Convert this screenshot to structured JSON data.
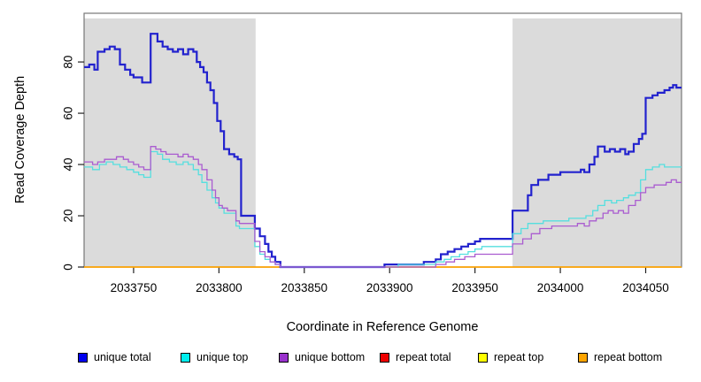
{
  "chart_data": {
    "type": "line",
    "step": true,
    "title": "",
    "xlabel": "Coordinate in Reference Genome",
    "ylabel": "Read Coverage Depth",
    "xlim": [
      2033721,
      2034071
    ],
    "ylim": [
      0,
      99
    ],
    "x_ticks": [
      2033750,
      2033800,
      2033850,
      2033900,
      2033950,
      2034000,
      2034050
    ],
    "y_ticks": [
      0,
      20,
      40,
      60,
      80
    ],
    "grid": false,
    "legend_position": "bottom",
    "band_color": "#DBDBDB",
    "box_color": "#777777",
    "tick_color": "#222222",
    "background_bands": {
      "top_value": 97,
      "ranges": [
        [
          2033721,
          2033821.5
        ],
        [
          2033972,
          2034071
        ]
      ]
    },
    "draw_order": [
      3,
      4,
      5,
      0,
      1,
      2
    ],
    "series": [
      {
        "name": "unique total",
        "swatch": "#0000EE",
        "line": "#2222CE",
        "width": 2.2,
        "points": [
          [
            2033721,
            78
          ],
          [
            2033724,
            79
          ],
          [
            2033727,
            77
          ],
          [
            2033729,
            84
          ],
          [
            2033733,
            85
          ],
          [
            2033736,
            86
          ],
          [
            2033739,
            85
          ],
          [
            2033742,
            79
          ],
          [
            2033745,
            77
          ],
          [
            2033748,
            75
          ],
          [
            2033750,
            74
          ],
          [
            2033755,
            72
          ],
          [
            2033760,
            91
          ],
          [
            2033764,
            88
          ],
          [
            2033767,
            86
          ],
          [
            2033770,
            85
          ],
          [
            2033773,
            84
          ],
          [
            2033776,
            85
          ],
          [
            2033779,
            83
          ],
          [
            2033782,
            85
          ],
          [
            2033785,
            84
          ],
          [
            2033787,
            80
          ],
          [
            2033789,
            78
          ],
          [
            2033791,
            76
          ],
          [
            2033793,
            72
          ],
          [
            2033795,
            69
          ],
          [
            2033797,
            64
          ],
          [
            2033799,
            57
          ],
          [
            2033801,
            53
          ],
          [
            2033803,
            46
          ],
          [
            2033806,
            44
          ],
          [
            2033809,
            43
          ],
          [
            2033811,
            42
          ],
          [
            2033813,
            20
          ],
          [
            2033821,
            15
          ],
          [
            2033824,
            12
          ],
          [
            2033827,
            9
          ],
          [
            2033829,
            6
          ],
          [
            2033831,
            4
          ],
          [
            2033833,
            2
          ],
          [
            2033836,
            0
          ],
          [
            2033897,
            1
          ],
          [
            2033920,
            2
          ],
          [
            2033927,
            3
          ],
          [
            2033930,
            5
          ],
          [
            2033934,
            6
          ],
          [
            2033938,
            7
          ],
          [
            2033942,
            8
          ],
          [
            2033946,
            9
          ],
          [
            2033950,
            10
          ],
          [
            2033953,
            11
          ],
          [
            2033972,
            22
          ],
          [
            2033981,
            28
          ],
          [
            2033983,
            32
          ],
          [
            2033987,
            34
          ],
          [
            2033993,
            36
          ],
          [
            2034000,
            37
          ],
          [
            2034012,
            38
          ],
          [
            2034014,
            37
          ],
          [
            2034017,
            40
          ],
          [
            2034020,
            43
          ],
          [
            2034022,
            47
          ],
          [
            2034026,
            45
          ],
          [
            2034029,
            46
          ],
          [
            2034032,
            45
          ],
          [
            2034035,
            46
          ],
          [
            2034038,
            44
          ],
          [
            2034040,
            45
          ],
          [
            2034043,
            48
          ],
          [
            2034046,
            50
          ],
          [
            2034048,
            52
          ],
          [
            2034050,
            66
          ],
          [
            2034054,
            67
          ],
          [
            2034057,
            68
          ],
          [
            2034061,
            69
          ],
          [
            2034064,
            70
          ],
          [
            2034066,
            71
          ],
          [
            2034068,
            70
          ]
        ]
      },
      {
        "name": "unique top",
        "swatch": "#00EEEE",
        "line": "#55DFDF",
        "width": 1.3,
        "points": [
          [
            2033721,
            39
          ],
          [
            2033726,
            38
          ],
          [
            2033730,
            40
          ],
          [
            2033734,
            41
          ],
          [
            2033738,
            40
          ],
          [
            2033742,
            39
          ],
          [
            2033746,
            38
          ],
          [
            2033750,
            37
          ],
          [
            2033753,
            36
          ],
          [
            2033756,
            35
          ],
          [
            2033760,
            45
          ],
          [
            2033764,
            44
          ],
          [
            2033767,
            42
          ],
          [
            2033771,
            41
          ],
          [
            2033775,
            40
          ],
          [
            2033779,
            41
          ],
          [
            2033782,
            40
          ],
          [
            2033785,
            38
          ],
          [
            2033788,
            36
          ],
          [
            2033790,
            33
          ],
          [
            2033793,
            30
          ],
          [
            2033796,
            27
          ],
          [
            2033798,
            25
          ],
          [
            2033800,
            23
          ],
          [
            2033803,
            21
          ],
          [
            2033810,
            16
          ],
          [
            2033812,
            15
          ],
          [
            2033821,
            8
          ],
          [
            2033824,
            5
          ],
          [
            2033827,
            3
          ],
          [
            2033830,
            2
          ],
          [
            2033833,
            1
          ],
          [
            2033836,
            0
          ],
          [
            2033905,
            1
          ],
          [
            2033927,
            2
          ],
          [
            2033932,
            3
          ],
          [
            2033936,
            4
          ],
          [
            2033941,
            5
          ],
          [
            2033946,
            6
          ],
          [
            2033950,
            7
          ],
          [
            2033954,
            8
          ],
          [
            2033972,
            13
          ],
          [
            2033977,
            15
          ],
          [
            2033981,
            17
          ],
          [
            2033990,
            18
          ],
          [
            2034005,
            19
          ],
          [
            2034015,
            20
          ],
          [
            2034019,
            22
          ],
          [
            2034022,
            24
          ],
          [
            2034026,
            26
          ],
          [
            2034030,
            25
          ],
          [
            2034033,
            26
          ],
          [
            2034037,
            27
          ],
          [
            2034040,
            28
          ],
          [
            2034044,
            29
          ],
          [
            2034047,
            34
          ],
          [
            2034050,
            38
          ],
          [
            2034054,
            39
          ],
          [
            2034058,
            40
          ],
          [
            2034061,
            39
          ]
        ]
      },
      {
        "name": "unique bottom",
        "swatch": "#9932CC",
        "line": "#AA5CD0",
        "width": 1.3,
        "points": [
          [
            2033721,
            41
          ],
          [
            2033726,
            40
          ],
          [
            2033729,
            41
          ],
          [
            2033733,
            42
          ],
          [
            2033737,
            42
          ],
          [
            2033740,
            43
          ],
          [
            2033744,
            42
          ],
          [
            2033747,
            41
          ],
          [
            2033750,
            40
          ],
          [
            2033753,
            39
          ],
          [
            2033756,
            38
          ],
          [
            2033760,
            47
          ],
          [
            2033763,
            46
          ],
          [
            2033766,
            45
          ],
          [
            2033769,
            44
          ],
          [
            2033773,
            44
          ],
          [
            2033776,
            43
          ],
          [
            2033779,
            44
          ],
          [
            2033782,
            43
          ],
          [
            2033785,
            42
          ],
          [
            2033788,
            40
          ],
          [
            2033790,
            38
          ],
          [
            2033793,
            34
          ],
          [
            2033796,
            30
          ],
          [
            2033798,
            27
          ],
          [
            2033800,
            24
          ],
          [
            2033802,
            23
          ],
          [
            2033805,
            22
          ],
          [
            2033810,
            18
          ],
          [
            2033812,
            17
          ],
          [
            2033821,
            10
          ],
          [
            2033824,
            6
          ],
          [
            2033827,
            4
          ],
          [
            2033830,
            2
          ],
          [
            2033833,
            1
          ],
          [
            2033836,
            0
          ],
          [
            2033927,
            1
          ],
          [
            2033933,
            2
          ],
          [
            2033938,
            3
          ],
          [
            2033944,
            4
          ],
          [
            2033950,
            5
          ],
          [
            2033972,
            9
          ],
          [
            2033978,
            11
          ],
          [
            2033983,
            13
          ],
          [
            2033988,
            15
          ],
          [
            2033995,
            16
          ],
          [
            2034010,
            17
          ],
          [
            2034014,
            16
          ],
          [
            2034017,
            18
          ],
          [
            2034021,
            19
          ],
          [
            2034025,
            21
          ],
          [
            2034028,
            22
          ],
          [
            2034031,
            21
          ],
          [
            2034034,
            22
          ],
          [
            2034037,
            21
          ],
          [
            2034040,
            24
          ],
          [
            2034044,
            26
          ],
          [
            2034047,
            29
          ],
          [
            2034050,
            31
          ],
          [
            2034055,
            32
          ],
          [
            2034059,
            32
          ],
          [
            2034062,
            33
          ],
          [
            2034065,
            34
          ],
          [
            2034068,
            33
          ]
        ]
      },
      {
        "name": "repeat total",
        "swatch": "#EE0000",
        "line": "#DD2222",
        "width": 1.3,
        "points": [
          [
            2033721,
            0
          ]
        ]
      },
      {
        "name": "repeat top",
        "swatch": "#FFFF00",
        "line": "#FFEE00",
        "width": 1.3,
        "points": [
          [
            2033721,
            0
          ]
        ]
      },
      {
        "name": "repeat bottom",
        "swatch": "#FFA500",
        "line": "#FFA500",
        "width": 1.6,
        "points": [
          [
            2033721,
            0
          ]
        ]
      }
    ]
  },
  "legend": {
    "item_lefts": [
      88,
      204,
      315,
      429,
      540,
      653
    ]
  }
}
